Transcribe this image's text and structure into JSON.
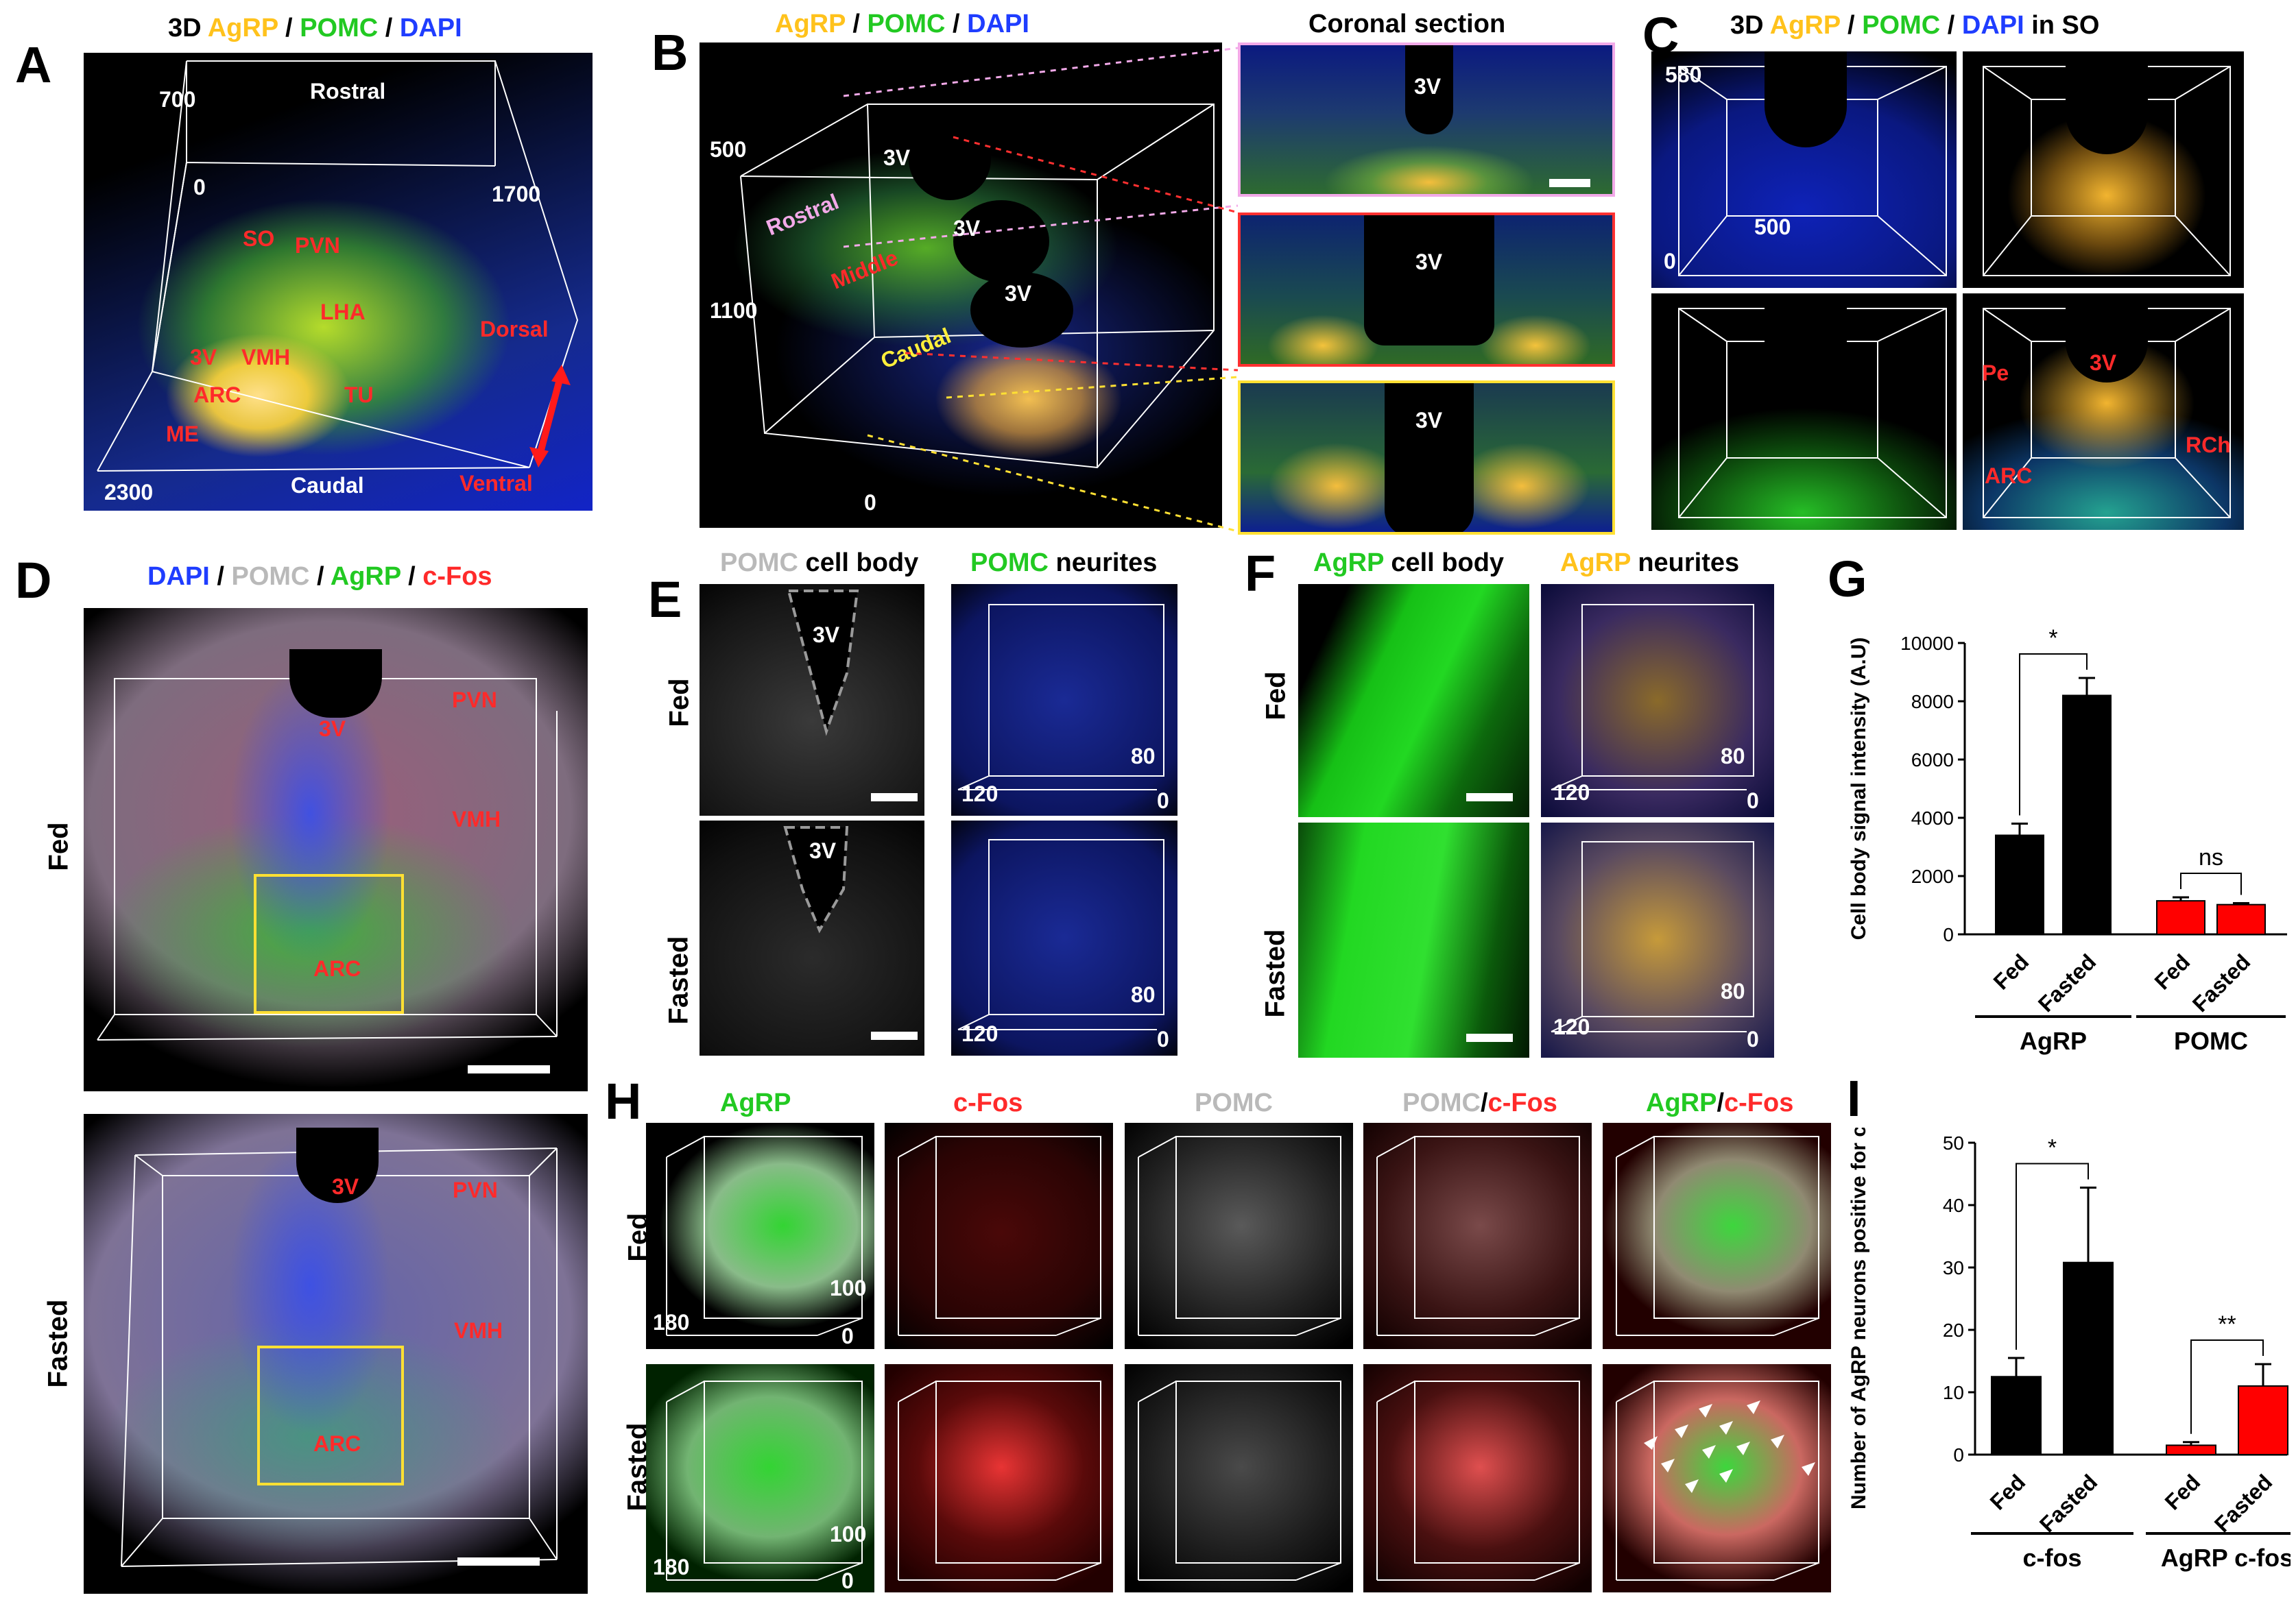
{
  "panels": {
    "A": {
      "letter": "A",
      "title_parts": [
        "3D ",
        "AgRP",
        " / ",
        "POMC",
        " / ",
        "DAPI"
      ],
      "dims": {
        "d700": "700",
        "d0": "0",
        "d1700": "1700",
        "d2300": "2300"
      },
      "orient": {
        "rostral": "Rostral",
        "caudal": "Caudal",
        "dorsal": "Dorsal",
        "ventral": "Ventral"
      },
      "regions": {
        "so": "SO",
        "pvn": "PVN",
        "lha": "LHA",
        "vmh": "VMH",
        "v3": "3V",
        "arc": "ARC",
        "tu": "TU",
        "me": "ME"
      }
    },
    "B": {
      "letter": "B",
      "title_parts": [
        "AgRP",
        " / ",
        "POMC",
        " / ",
        "DAPI"
      ],
      "coronal": "Coronal section",
      "dims": {
        "d500": "500",
        "d1100": "1100",
        "d0": "0"
      },
      "sections": {
        "rostral": "Rostral",
        "middle": "Middle",
        "caudal": "Caudal"
      },
      "v3": "3V"
    },
    "C": {
      "letter": "C",
      "title_parts": [
        "3D ",
        "AgRP",
        " / ",
        "POMC",
        " / ",
        "DAPI",
        " in SO"
      ],
      "dims": {
        "d580": "580",
        "d500": "500",
        "d0": "0"
      },
      "regions": {
        "pe": "Pe",
        "v3": "3V",
        "rch": "RCh",
        "arc": "ARC"
      }
    },
    "D": {
      "letter": "D",
      "title_parts": [
        "DAPI",
        " / ",
        "POMC",
        " / ",
        "AgRP",
        " / ",
        "c-Fos"
      ],
      "rows": [
        "Fed",
        "Fasted"
      ],
      "regions": {
        "v3": "3V",
        "pvn": "PVN",
        "vmh": "VMH",
        "arc": "ARC"
      }
    },
    "E": {
      "letter": "E",
      "head1_parts": [
        "POMC",
        " cell body"
      ],
      "head2_parts": [
        "POMC",
        " neurites"
      ],
      "rows": [
        "Fed",
        "Fasted"
      ],
      "v3": "3V",
      "dims": {
        "d80": "80",
        "d120": "120",
        "d0": "0"
      }
    },
    "F": {
      "letter": "F",
      "head1_parts": [
        "AgRP",
        " cell body"
      ],
      "head2_parts": [
        "AgRP",
        " neurites"
      ],
      "rows": [
        "Fed",
        "Fasted"
      ],
      "dims": {
        "d80": "80",
        "d120": "120",
        "d0": "0"
      }
    },
    "G": {
      "letter": "G"
    },
    "H": {
      "letter": "H",
      "cols": [
        {
          "parts": [
            "AgRP"
          ]
        },
        {
          "parts": [
            "c-Fos"
          ]
        },
        {
          "parts": [
            "POMC"
          ]
        },
        {
          "parts": [
            "POMC",
            "/",
            "c-Fos"
          ]
        },
        {
          "parts": [
            "AgRP",
            "/",
            "c-Fos"
          ]
        }
      ],
      "rows": [
        "Fed",
        "Fasted"
      ],
      "dims": {
        "d100": "100",
        "d180": "180",
        "d0": "0"
      }
    },
    "I": {
      "letter": "I"
    }
  },
  "colors": {
    "agrp_yellow": "#ffc21c",
    "pomc_green": "#22c922",
    "dapi_blue": "#1f3dff",
    "cfos_red": "#ff2a2a",
    "pomc_gray": "#b9b9b9",
    "bar_black": "#000000",
    "bar_red": "#ff0000"
  },
  "chart_data": [
    {
      "panel": "G",
      "type": "bar",
      "ylabel": "Cell body signal intensity (A.U)",
      "ylim": [
        0,
        10000
      ],
      "yticks": [
        "0",
        "2000",
        "4000",
        "6000",
        "8000",
        "10000"
      ],
      "categories": [
        "Fed",
        "Fasted",
        "Fed",
        "Fasted"
      ],
      "values": [
        3400,
        8200,
        1150,
        1020
      ],
      "errors": [
        400,
        600,
        120,
        50
      ],
      "bar_colors": [
        "#000000",
        "#000000",
        "#ff0000",
        "#ff0000"
      ],
      "groups": [
        {
          "label": "AgRP",
          "indices": [
            0,
            1
          ]
        },
        {
          "label": "POMC",
          "indices": [
            2,
            3
          ]
        }
      ],
      "annotations": [
        {
          "text": "*",
          "between": [
            0,
            1
          ]
        },
        {
          "text": "ns",
          "between": [
            2,
            3
          ]
        }
      ]
    },
    {
      "panel": "I",
      "type": "bar",
      "ylabel": "Number of AgRP  neurons positive for c-fos",
      "ylim": [
        0,
        50
      ],
      "yticks": [
        "0",
        "10",
        "20",
        "30",
        "40",
        "50"
      ],
      "categories": [
        "Fed",
        "Fasted",
        "Fed",
        "Fasted"
      ],
      "values": [
        12.5,
        30.8,
        1.5,
        11
      ],
      "errors": [
        3,
        12,
        0.5,
        3.5
      ],
      "bar_colors": [
        "#000000",
        "#000000",
        "#ff0000",
        "#ff0000"
      ],
      "groups": [
        {
          "label": "c-fos",
          "indices": [
            0,
            1
          ]
        },
        {
          "label": "AgRP c-fos",
          "indices": [
            2,
            3
          ]
        }
      ],
      "annotations": [
        {
          "text": "*",
          "between": [
            0,
            1
          ]
        },
        {
          "text": "**",
          "between": [
            2,
            3
          ]
        }
      ]
    }
  ]
}
